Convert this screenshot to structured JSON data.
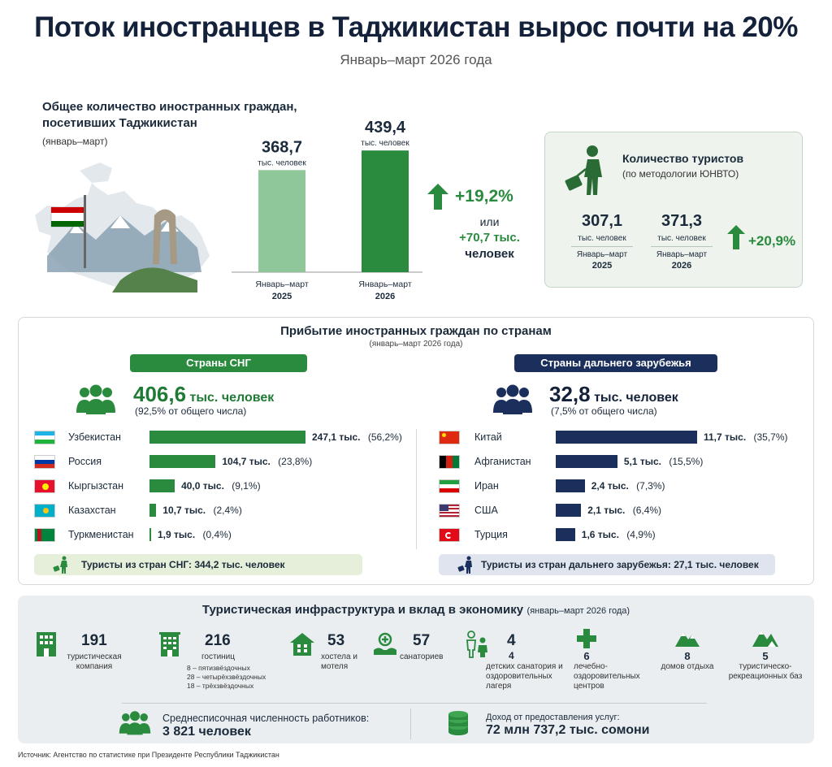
{
  "header": {
    "title": "Поток иностранцев в Таджикистан вырос почти на 20%",
    "subtitle": "Январь–март 2026 года"
  },
  "total_section": {
    "title_line1": "Общее количество иностранных граждан,",
    "title_line2": "посетивших Таджикистан",
    "period": "(январь–март)",
    "growth_pct": "+19,2%",
    "or_label": "или",
    "growth_abs": "+70,7 тыс.",
    "growth_unit": "человек"
  },
  "tourists_box": {
    "title": "Количество туристов",
    "subtitle": "(по методологии ЮНВТО)",
    "items": [
      {
        "value": "307,1",
        "unit": "тыс. человек",
        "period1": "Январь–март",
        "period2": "2025"
      },
      {
        "value": "371,3",
        "unit": "тыс. человек",
        "period1": "Январь–март",
        "period2": "2026"
      }
    ],
    "growth": "+20,9%",
    "colors": {
      "accent": "#2a8a3e",
      "background": "#eef3ee"
    }
  },
  "countries_section": {
    "title": "Прибытие иностранных граждан по странам",
    "period": "(январь–март 2026 года)",
    "cis": {
      "header": "Страны СНГ",
      "total_value": "406,6",
      "total_unit": "тыс. человек",
      "share": "(92,5% от общего числа)",
      "tourists_note": "Туристы из стран СНГ: 344,2 тыс. человек",
      "color": "#2a8a3e"
    },
    "far": {
      "header": "Страны дальнего зарубежья",
      "total_value": "32,8",
      "total_unit": "тыс. человек",
      "share": "(7,5% от общего числа)",
      "tourists_note": "Туристы из стран дальнего зарубежья: 27,1 тыс. человек",
      "color": "#1b2f5c"
    }
  },
  "infrastructure": {
    "title": "Туристическая инфраструктура и вклад в экономику",
    "period": "(январь–март 2026 года)",
    "items": [
      {
        "num": "191",
        "label": "туристическая компания",
        "icon": "building-icon"
      },
      {
        "num": "216",
        "label": "гостиниц",
        "icon": "hotel-icon",
        "details": [
          "8 – пятизвёздочных",
          "28 – четырёхзвёздочных",
          "18 – трёхзвёздочных"
        ]
      },
      {
        "num": "53",
        "label": "хостела и мотеля",
        "icon": "house-icon"
      },
      {
        "num": "57",
        "label": "санаториев",
        "icon": "sanatorium-icon"
      },
      {
        "num": "4",
        "label": "детских санатория и оздоровительных лагеря",
        "icon": "family-icon"
      },
      {
        "num": "6",
        "label": "лечебно-оздоровительных центров",
        "icon": "medical-cross-icon"
      },
      {
        "num": "8",
        "label": "домов отдыха",
        "icon": "mountain-icon"
      },
      {
        "num": "5",
        "label": "туристическо-рекреационных баз",
        "icon": "mountain-camp-icon"
      }
    ],
    "workers_label": "Среднесписочная численность работников:",
    "workers_value": "3 821 человек",
    "income_label": "Доход от предоставления услуг:",
    "income_value": "72 млн 737,2 тыс. сомони"
  },
  "source": "Источник: Агентство по статистике при Президенте Республики Таджикистан",
  "chart_data": [
    {
      "type": "bar",
      "categories": [
        "Январь–март 2025",
        "Январь–март 2026"
      ],
      "values": [
        368.7,
        439.4
      ],
      "value_labels": [
        "368,7",
        "439,4"
      ],
      "unit_label": "тыс. человек",
      "cat_line1": [
        "Январь–март",
        "Январь–март"
      ],
      "cat_line2": [
        "2025",
        "2026"
      ],
      "colors": [
        "#8fc79a",
        "#2a8a3e"
      ],
      "ylim": [
        0,
        460
      ]
    },
    {
      "type": "bar",
      "orientation": "horizontal",
      "categories": [
        "Узбекистан",
        "Россия",
        "Кыргызстан",
        "Казахстан",
        "Туркменистан"
      ],
      "values": [
        247.1,
        104.7,
        40.0,
        10.7,
        1.9
      ],
      "value_labels": [
        "247,1 тыс.",
        "104,7 тыс.",
        "40,0 тыс.",
        "10,7 тыс.",
        "1,9 тыс."
      ],
      "share_labels": [
        "(56,2%)",
        "(23,8%)",
        "(9,1%)",
        "(2,4%)",
        "(0,4%)"
      ],
      "flags": [
        "uz",
        "ru",
        "kg",
        "kz",
        "tm"
      ],
      "xlim": [
        0,
        247.1
      ],
      "color": "#2a8a3e"
    },
    {
      "type": "bar",
      "orientation": "horizontal",
      "categories": [
        "Китай",
        "Афганистан",
        "Иран",
        "США",
        "Турция"
      ],
      "values": [
        11.7,
        5.1,
        2.4,
        2.1,
        1.6
      ],
      "value_labels": [
        "11,7 тыс.",
        "5,1 тыс.",
        "2,4 тыс.",
        "2,1 тыс.",
        "1,6 тыс."
      ],
      "share_labels": [
        "(35,7%)",
        "(15,5%)",
        "(7,3%)",
        "(6,4%)",
        "(4,9%)"
      ],
      "flags": [
        "cn",
        "af",
        "ir",
        "us",
        "tr"
      ],
      "xlim": [
        0,
        11.7
      ],
      "color": "#1b2f5c"
    }
  ]
}
